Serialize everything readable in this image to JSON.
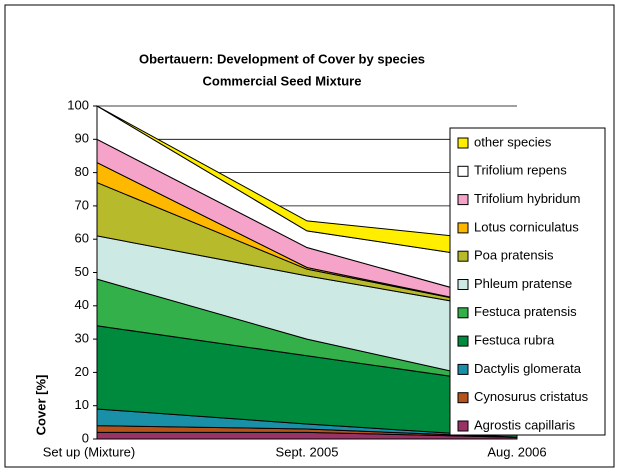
{
  "chart_data": {
    "type": "stacked_area",
    "title": "Obertauern: Development of Cover by species",
    "subtitle": "Commercial Seed Mixture",
    "y_label": "Cover [%]",
    "categories": [
      "Set up (Mixture)",
      "Sept. 2005",
      "Aug. 2006"
    ],
    "ylim": [
      0,
      100
    ],
    "yticks": [
      0,
      10,
      20,
      30,
      40,
      50,
      60,
      70,
      80,
      90,
      100
    ],
    "grid": true,
    "legend": "right",
    "series": [
      {
        "name": "Agrostis capillaris",
        "color": "#993366",
        "values": [
          2,
          2,
          0.5
        ]
      },
      {
        "name": "Cynosurus cristatus",
        "color": "#b5531b",
        "values": [
          2,
          1,
          0
        ]
      },
      {
        "name": "Dactylis glomerata",
        "color": "#1a8fa8",
        "values": [
          5,
          1.5,
          0
        ]
      },
      {
        "name": "Festuca rubra",
        "color": "#008a3e",
        "values": [
          25,
          20.5,
          15.5
        ]
      },
      {
        "name": "Festuca pratensis",
        "color": "#33b04a",
        "values": [
          14,
          5,
          0
        ]
      },
      {
        "name": "Phleum pratense",
        "color": "#cde9e3",
        "values": [
          13,
          19,
          22
        ]
      },
      {
        "name": "Poa pratensis",
        "color": "#b7ba2a",
        "values": [
          16,
          2,
          0.5
        ]
      },
      {
        "name": "Lotus corniculatus",
        "color": "#ffb800",
        "values": [
          6,
          0.5,
          0
        ]
      },
      {
        "name": "Trifolium hybridum",
        "color": "#f5a3c8",
        "values": [
          7,
          6,
          1.5
        ]
      },
      {
        "name": "Trifolium repens",
        "color": "#ffffff",
        "values": [
          10,
          5,
          13
        ]
      },
      {
        "name": "other species",
        "color": "#ffee00",
        "values": [
          0,
          3,
          6
        ]
      }
    ]
  }
}
